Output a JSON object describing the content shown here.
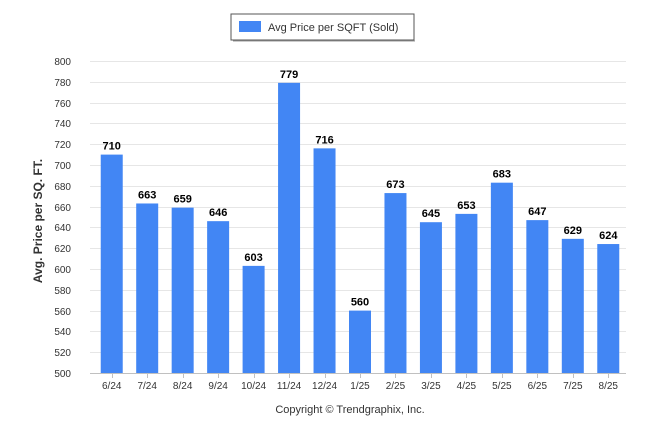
{
  "chart_data": {
    "type": "bar",
    "title": "",
    "xlabel": "",
    "ylabel": "Avg. Price per SQ. FT.",
    "ylim": [
      500,
      800
    ],
    "y_ticks": [
      500,
      520,
      540,
      560,
      580,
      600,
      620,
      640,
      660,
      680,
      700,
      720,
      740,
      760,
      780,
      800
    ],
    "grid": true,
    "legend_position": "top-center",
    "categories": [
      "6/24",
      "7/24",
      "8/24",
      "9/24",
      "10/24",
      "11/24",
      "12/24",
      "1/25",
      "2/25",
      "3/25",
      "4/25",
      "5/25",
      "6/25",
      "7/25",
      "8/25"
    ],
    "series": [
      {
        "name": "Avg Price per SQFT (Sold)",
        "color": "#4286f4",
        "values": [
          710,
          663,
          659,
          646,
          603,
          779,
          716,
          560,
          673,
          645,
          653,
          683,
          647,
          629,
          624
        ]
      }
    ]
  },
  "footer": {
    "copyright": "Copyright © Trendgraphix, Inc."
  }
}
